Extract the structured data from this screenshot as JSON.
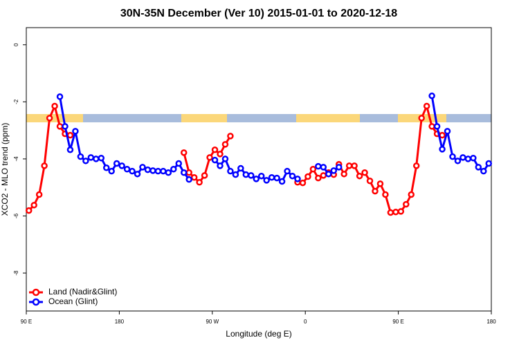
{
  "chart_data": {
    "type": "line",
    "title": "30N-35N December (Ver 10)   2015-01-01 to 2020-12-18",
    "x_label": "Longitude (deg E)",
    "y_label": "XCO2 - MLO trend (ppm)",
    "xlim": [
      90,
      540
    ],
    "ylim": [
      -9.33,
      0.6
    ],
    "xticks": [
      {
        "value": 90,
        "label": "90 E"
      },
      180,
      {
        "value": 270,
        "label": "90 W"
      },
      {
        "value": 360,
        "label": "0"
      },
      {
        "value": 450,
        "label": "90 E"
      },
      {
        "value": 540,
        "label": "180"
      }
    ],
    "yticks": [
      0,
      -2,
      -4,
      -6,
      -8
    ],
    "legend": "bottom-left",
    "series": [
      {
        "name": "Land (Nadir&Glint)",
        "color": "#ff0000",
        "x": [
          92.5,
          97.5,
          102.5,
          107.5,
          112.5,
          117.5,
          122.5,
          127.5,
          132.5,
          137.5,
          242.5,
          247.5,
          252.5,
          257.5,
          262.5,
          267.5,
          272.5,
          277.5,
          282.5,
          287.5,
          292.5,
          352.5,
          357.5,
          362.5,
          367.5,
          372.5,
          377.5,
          382.5,
          387.5,
          392.5,
          397.5,
          402.5,
          407.5,
          412.5,
          417.5,
          422.5,
          427.5,
          432.5,
          437.5,
          442.5,
          447.5,
          452.5,
          457.5,
          462.5,
          467.5,
          472.5,
          477.5,
          482.5,
          487.5,
          492.5
        ],
        "values": [
          -5.81,
          -5.62,
          -5.25,
          -4.24,
          -2.57,
          -2.15,
          -2.86,
          -3.12,
          -3.17,
          null,
          -3.78,
          -4.48,
          -4.65,
          -4.82,
          -4.58,
          -3.95,
          -3.68,
          -3.83,
          -3.49,
          -3.2,
          null,
          -4.82,
          -4.84,
          -4.62,
          -4.36,
          -4.67,
          -4.58,
          -4.48,
          -4.55,
          -4.19,
          -4.53,
          -4.24,
          -4.24,
          -4.6,
          -4.48,
          -4.77,
          -5.13,
          -4.87,
          -5.25,
          -5.88,
          -5.86,
          -5.84,
          -5.59,
          -5.25,
          -4.24,
          -2.57,
          -2.15,
          -2.86,
          -3.12,
          -3.17
        ]
      },
      {
        "name": "Ocean (Glint)",
        "color": "#0000ff",
        "x": [
          122.5,
          127.5,
          132.5,
          137.5,
          142.5,
          147.5,
          152.5,
          157.5,
          162.5,
          167.5,
          172.5,
          177.5,
          182.5,
          187.5,
          192.5,
          197.5,
          202.5,
          207.5,
          212.5,
          217.5,
          222.5,
          227.5,
          232.5,
          237.5,
          242.5,
          247.5,
          252.5,
          272.5,
          277.5,
          282.5,
          287.5,
          292.5,
          297.5,
          302.5,
          307.5,
          312.5,
          317.5,
          322.5,
          327.5,
          332.5,
          337.5,
          342.5,
          347.5,
          352.5,
          362.5,
          372.5,
          377.5,
          382.5,
          387.5,
          392.5,
          397.5,
          482.5,
          487.5,
          492.5,
          497.5,
          502.5,
          507.5,
          512.5,
          517.5,
          522.5,
          527.5,
          532.5,
          537.5
        ],
        "values": [
          -1.82,
          -2.86,
          -3.68,
          -3.03,
          -3.92,
          -4.07,
          -3.95,
          -4.0,
          -3.97,
          -4.31,
          -4.43,
          -4.16,
          -4.24,
          -4.36,
          -4.43,
          -4.53,
          -4.29,
          -4.38,
          -4.41,
          -4.43,
          -4.43,
          -4.48,
          -4.36,
          -4.16,
          -4.48,
          -4.72,
          null,
          -4.04,
          -4.24,
          -4.0,
          -4.43,
          -4.55,
          -4.33,
          -4.55,
          -4.58,
          -4.7,
          -4.6,
          -4.75,
          -4.65,
          -4.67,
          -4.79,
          -4.43,
          -4.6,
          -4.7,
          null,
          -4.26,
          -4.29,
          -4.53,
          -4.41,
          -4.29,
          null,
          -1.79,
          -2.86,
          -3.66,
          -3.03,
          -3.92,
          -4.07,
          -3.95,
          -4.0,
          -3.97,
          -4.29,
          -4.43,
          -4.16
        ]
      }
    ]
  }
}
